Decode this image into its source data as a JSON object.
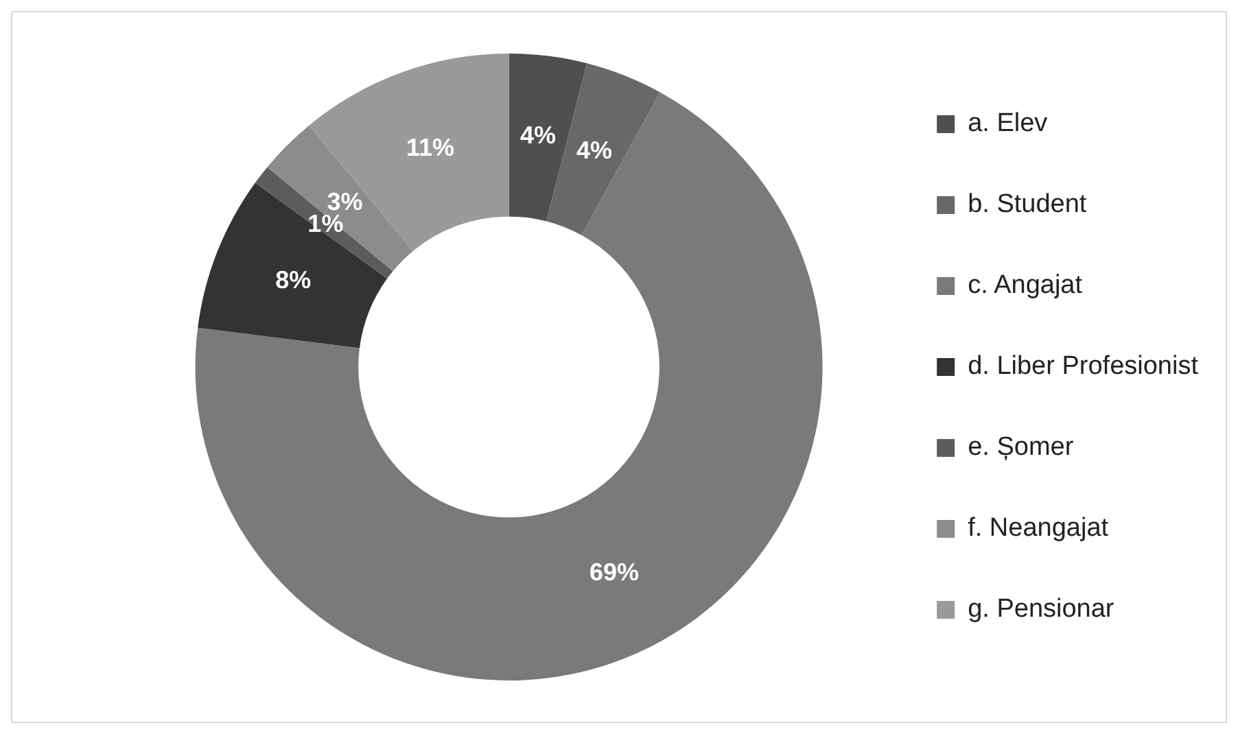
{
  "chart_data": {
    "type": "donut",
    "categories": [
      "a. Elev",
      "b. Student",
      "c. Angajat",
      "d. Liber Profesionist",
      "e. Șomer",
      "f. Neangajat",
      "g. Pensionar"
    ],
    "values": [
      4,
      4,
      69,
      8,
      1,
      3,
      11
    ],
    "value_labels": [
      "4%",
      "4%",
      "69%",
      "8%",
      "1%",
      "3%",
      "11%"
    ],
    "colors": [
      "#4f4f4f",
      "#686868",
      "#7a7a7a",
      "#333333",
      "#5c5c5c",
      "#8c8c8c",
      "#9a9a9a"
    ],
    "legend": "right"
  }
}
